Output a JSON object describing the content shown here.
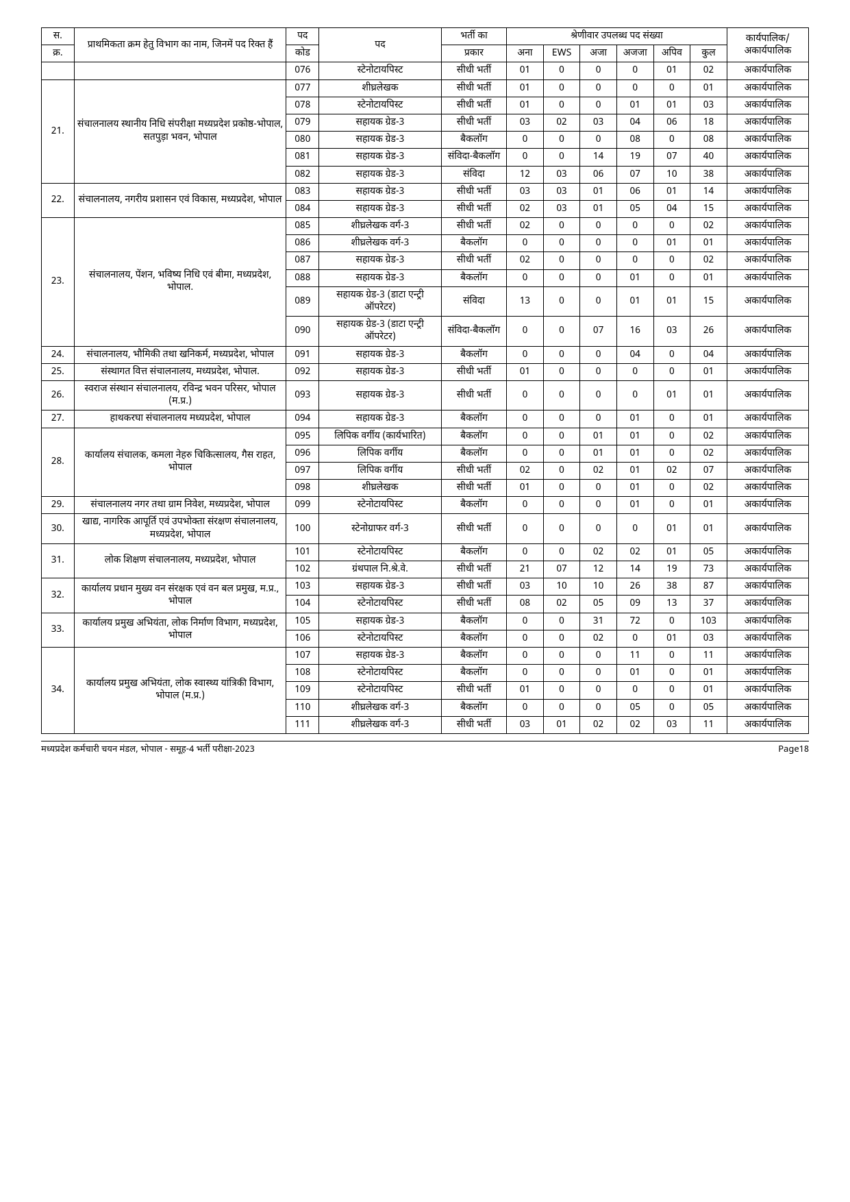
{
  "headers": {
    "sno1": "स.",
    "sno2": "क्र.",
    "dept": "प्राथमिकता क्रम हेतु विभाग का नाम, जिनमें पद रिक्त हैं",
    "code1": "पद",
    "code2": "कोड",
    "post": "पद",
    "type1": "भर्ती का",
    "type2": "प्रकार",
    "catgroup": "श्रेणीवार उपलब्ध पद संख्या",
    "c1": "अना",
    "c2": "EWS",
    "c3": "अजा",
    "c4": "अजजा",
    "c5": "अपिव",
    "c6": "कुल",
    "exec": "कार्यपालिक/ अकार्यपालिक"
  },
  "groups": [
    {
      "sno": "",
      "dept": "",
      "rows": [
        [
          "076",
          "स्टेनोटायपिस्ट",
          "सीधी भर्ती",
          "01",
          "0",
          "0",
          "0",
          "01",
          "02",
          "अकार्यपालिक"
        ]
      ]
    },
    {
      "sno": "21.",
      "dept": "संचालनालय स्थानीय निधि संपरीक्षा मध्यप्रदेश प्रकोष्ठ-भोपाल, सतपुड़ा भवन, भोपाल",
      "rows": [
        [
          "077",
          "शीघ्रलेखक",
          "सीधी भर्ती",
          "01",
          "0",
          "0",
          "0",
          "0",
          "01",
          "अकार्यपालिक"
        ],
        [
          "078",
          "स्टेनोटायपिस्ट",
          "सीधी भर्ती",
          "01",
          "0",
          "0",
          "01",
          "01",
          "03",
          "अकार्यपालिक"
        ],
        [
          "079",
          "सहायक ग्रेड-3",
          "सीधी भर्ती",
          "03",
          "02",
          "03",
          "04",
          "06",
          "18",
          "अकार्यपालिक"
        ],
        [
          "080",
          "सहायक ग्रेड-3",
          "बैकलॉग",
          "0",
          "0",
          "0",
          "08",
          "0",
          "08",
          "अकार्यपालिक"
        ],
        [
          "081",
          "सहायक ग्रेड-3",
          "संविदा-बैकलॉग",
          "0",
          "0",
          "14",
          "19",
          "07",
          "40",
          "अकार्यपालिक"
        ],
        [
          "082",
          "सहायक ग्रेड-3",
          "संविदा",
          "12",
          "03",
          "06",
          "07",
          "10",
          "38",
          "अकार्यपालिक"
        ]
      ]
    },
    {
      "sno": "22.",
      "dept": "संचालनालय, नगरीय प्रशासन एवं विकास, मध्यप्रदेश, भोपाल",
      "rows": [
        [
          "083",
          "सहायक ग्रेड-3",
          "सीधी भर्ती",
          "03",
          "03",
          "01",
          "06",
          "01",
          "14",
          "अकार्यपालिक"
        ],
        [
          "084",
          "सहायक ग्रेड-3",
          "सीधी भर्ती",
          "02",
          "03",
          "01",
          "05",
          "04",
          "15",
          "अकार्यपालिक"
        ]
      ]
    },
    {
      "sno": "23.",
      "dept": "संचालनालय, पेंशन, भविष्य निधि एवं बीमा, मध्यप्रदेश, भोपाल.",
      "rows": [
        [
          "085",
          "शीघ्रलेखक वर्ग-3",
          "सीधी भर्ती",
          "02",
          "0",
          "0",
          "0",
          "0",
          "02",
          "अकार्यपालिक"
        ],
        [
          "086",
          "शीघ्रलेखक वर्ग-3",
          "बैकलॉग",
          "0",
          "0",
          "0",
          "0",
          "01",
          "01",
          "अकार्यपालिक"
        ],
        [
          "087",
          "सहायक ग्रेड-3",
          "सीधी भर्ती",
          "02",
          "0",
          "0",
          "0",
          "0",
          "02",
          "अकार्यपालिक"
        ],
        [
          "088",
          "सहायक ग्रेड-3",
          "बैकलॉग",
          "0",
          "0",
          "0",
          "01",
          "0",
          "01",
          "अकार्यपालिक"
        ],
        [
          "089",
          "सहायक ग्रेड-3 (डाटा एन्ट्री ऑपरेटर)",
          "संविदा",
          "13",
          "0",
          "0",
          "01",
          "01",
          "15",
          "अकार्यपालिक"
        ],
        [
          "090",
          "सहायक ग्रेड-3 (डाटा एन्ट्री ऑपरेटर)",
          "संविदा-बैकलॉग",
          "0",
          "0",
          "07",
          "16",
          "03",
          "26",
          "अकार्यपालिक"
        ]
      ]
    },
    {
      "sno": "24.",
      "dept": "संचालनालय, भौमिकी तथा खनिकर्म, मध्यप्रदेश, भोपाल",
      "rows": [
        [
          "091",
          "सहायक ग्रेड-3",
          "बैकलॉग",
          "0",
          "0",
          "0",
          "04",
          "0",
          "04",
          "अकार्यपालिक"
        ]
      ]
    },
    {
      "sno": "25.",
      "dept": "संस्थागत वित्त संचालनालय, मध्यप्रदेश, भोपाल.",
      "rows": [
        [
          "092",
          "सहायक ग्रेड-3",
          "सीधी भर्ती",
          "01",
          "0",
          "0",
          "0",
          "0",
          "01",
          "अकार्यपालिक"
        ]
      ]
    },
    {
      "sno": "26.",
      "dept": "स्वराज संस्थान संचालनालय, रविन्द्र भवन परिसर, भोपाल (म.प्र.)",
      "rows": [
        [
          "093",
          "सहायक ग्रेड-3",
          "सीधी भर्ती",
          "0",
          "0",
          "0",
          "0",
          "01",
          "01",
          "अकार्यपालिक"
        ]
      ]
    },
    {
      "sno": "27.",
      "dept": "हाथकरघा संचालनालय मध्यप्रदेश, भोपाल",
      "rows": [
        [
          "094",
          "सहायक ग्रेड-3",
          "बैकलॉग",
          "0",
          "0",
          "0",
          "01",
          "0",
          "01",
          "अकार्यपालिक"
        ]
      ]
    },
    {
      "sno": "28.",
      "dept": "कार्यालय संचालक, कमला नेहरु चिकित्सालय, गैस राहत, भोपाल",
      "rows": [
        [
          "095",
          "लिपिक वर्गीय (कार्यभारित)",
          "बैकलॉग",
          "0",
          "0",
          "01",
          "01",
          "0",
          "02",
          "अकार्यपालिक"
        ],
        [
          "096",
          "लिपिक वर्गीय",
          "बैकलॉग",
          "0",
          "0",
          "01",
          "01",
          "0",
          "02",
          "अकार्यपालिक"
        ],
        [
          "097",
          "लिपिक वर्गीय",
          "सीधी भर्ती",
          "02",
          "0",
          "02",
          "01",
          "02",
          "07",
          "अकार्यपालिक"
        ],
        [
          "098",
          "शीघ्रलेखक",
          "सीधी भर्ती",
          "01",
          "0",
          "0",
          "01",
          "0",
          "02",
          "अकार्यपालिक"
        ]
      ]
    },
    {
      "sno": "29.",
      "dept": "संचालनालय नगर तथा ग्राम निवेश, मध्यप्रदेश, भोपाल",
      "rows": [
        [
          "099",
          "स्टेनोटायपिस्ट",
          "बैकलॉग",
          "0",
          "0",
          "0",
          "01",
          "0",
          "01",
          "अकार्यपालिक"
        ]
      ]
    },
    {
      "sno": "30.",
      "dept": "खाद्य, नागरिक आपूर्ति एवं उपभोक्ता संरक्षण संचालनालय, मध्यप्रदेश, भोपाल",
      "rows": [
        [
          "100",
          "स्टेनोग्राफर वर्ग-3",
          "सीधी भर्ती",
          "0",
          "0",
          "0",
          "0",
          "01",
          "01",
          "अकार्यपालिक"
        ]
      ]
    },
    {
      "sno": "31.",
      "dept": "लोक शिक्षण संचालनालय, मध्यप्रदेश, भोपाल",
      "rows": [
        [
          "101",
          "स्टेनोटायपिस्ट",
          "बैकलॉग",
          "0",
          "0",
          "02",
          "02",
          "01",
          "05",
          "अकार्यपालिक"
        ],
        [
          "102",
          "ग्रंथपाल नि.श्रे.वे.",
          "सीधी भर्ती",
          "21",
          "07",
          "12",
          "14",
          "19",
          "73",
          "अकार्यपालिक"
        ]
      ]
    },
    {
      "sno": "32.",
      "dept": "कार्यालय प्रधान मुख्य वन संरक्षक एवं वन बल प्रमुख, म.प्र., भोपाल",
      "rows": [
        [
          "103",
          "सहायक ग्रेड-3",
          "सीधी भर्ती",
          "03",
          "10",
          "10",
          "26",
          "38",
          "87",
          "अकार्यपालिक"
        ],
        [
          "104",
          "स्टेनोटायपिस्ट",
          "सीधी भर्ती",
          "08",
          "02",
          "05",
          "09",
          "13",
          "37",
          "अकार्यपालिक"
        ]
      ]
    },
    {
      "sno": "33.",
      "dept": "कार्यालय प्रमुख अभियंता, लोक निर्माण विभाग, मध्यप्रदेश, भोपाल",
      "rows": [
        [
          "105",
          "सहायक ग्रेड-3",
          "बैकलॉग",
          "0",
          "0",
          "31",
          "72",
          "0",
          "103",
          "अकार्यपालिक"
        ],
        [
          "106",
          "स्टेनोटायपिस्ट",
          "बैकलॉग",
          "0",
          "0",
          "02",
          "0",
          "01",
          "03",
          "अकार्यपालिक"
        ]
      ]
    },
    {
      "sno": "34.",
      "dept": "कार्यालय प्रमुख अभियंता, लोक स्वास्थ्य यांत्रिकी विभाग, भोपाल (म.प्र.)",
      "rows": [
        [
          "107",
          "सहायक ग्रेड-3",
          "बैकलॉग",
          "0",
          "0",
          "0",
          "11",
          "0",
          "11",
          "अकार्यपालिक"
        ],
        [
          "108",
          "स्टेनोटायपिस्ट",
          "बैकलॉग",
          "0",
          "0",
          "0",
          "01",
          "0",
          "01",
          "अकार्यपालिक"
        ],
        [
          "109",
          "स्टेनोटायपिस्ट",
          "सीधी भर्ती",
          "01",
          "0",
          "0",
          "0",
          "0",
          "01",
          "अकार्यपालिक"
        ],
        [
          "110",
          "शीघ्रलेखक वर्ग-3",
          "बैकलॉग",
          "0",
          "0",
          "0",
          "05",
          "0",
          "05",
          "अकार्यपालिक"
        ],
        [
          "111",
          "शीघ्रलेखक वर्ग-3",
          "सीधी भर्ती",
          "03",
          "01",
          "02",
          "02",
          "03",
          "11",
          "अकार्यपालिक"
        ]
      ]
    }
  ],
  "footer": {
    "left": "मध्यप्रदेश कर्मचारी चयन मंडल, भोपाल - समूह-4 भर्ती परीक्षा-2023",
    "right": "Page18"
  }
}
